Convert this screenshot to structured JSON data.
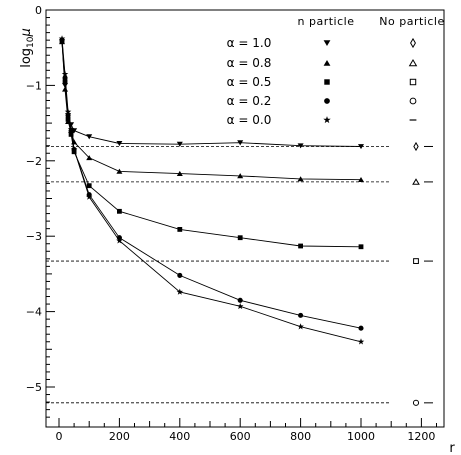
{
  "chart_data": {
    "type": "line",
    "xlabel": "r",
    "ylabel": "log",
    "ylabel_sub": "10",
    "ylabel_var": "μ",
    "xlim": [
      0,
      1300
    ],
    "ylim": [
      -5.4,
      0
    ],
    "xticks": [
      0,
      200,
      400,
      600,
      800,
      1000,
      1200
    ],
    "yticks": [
      0,
      -1,
      -2,
      -3,
      -4,
      -5
    ],
    "tick_labels_x": [
      "0",
      "200",
      "400",
      "600",
      "800",
      "1000",
      "1200"
    ],
    "tick_labels_y": [
      "0",
      "−1",
      "−2",
      "−3",
      "−4",
      "−5"
    ],
    "legend": {
      "col_header_with": "n particle",
      "col_header_without": "No particle",
      "placement": "top-right"
    },
    "series": [
      {
        "name": "α = 1.0",
        "marker": "triangle-down",
        "no_particle_marker": "diamond",
        "x": [
          10,
          20,
          30,
          40,
          50,
          100,
          200,
          400,
          600,
          800,
          1000
        ],
        "y": [
          -0.42,
          -1.0,
          -1.4,
          -1.52,
          -1.6,
          -1.68,
          -1.77,
          -1.78,
          -1.76,
          -1.8,
          -1.81
        ],
        "no_particle_value": -1.81
      },
      {
        "name": "α = 0.8",
        "marker": "triangle-up",
        "no_particle_marker": "triangle-up-open",
        "x": [
          10,
          20,
          30,
          40,
          50,
          100,
          200,
          400,
          600,
          800,
          1000
        ],
        "y": [
          -0.42,
          -1.05,
          -1.48,
          -1.6,
          -1.75,
          -1.96,
          -2.14,
          -2.17,
          -2.2,
          -2.24,
          -2.25
        ],
        "no_particle_value": -2.28
      },
      {
        "name": "α = 0.5",
        "marker": "square",
        "no_particle_marker": "square-open",
        "x": [
          10,
          20,
          30,
          40,
          50,
          100,
          200,
          400,
          600,
          800,
          1000
        ],
        "y": [
          -0.42,
          -0.95,
          -1.45,
          -1.65,
          -1.88,
          -2.33,
          -2.67,
          -2.91,
          -3.02,
          -3.13,
          -3.14
        ],
        "no_particle_value": -3.33
      },
      {
        "name": "α = 0.2",
        "marker": "circle",
        "no_particle_marker": "circle-open",
        "x": [
          10,
          20,
          30,
          40,
          50,
          100,
          200,
          400,
          600,
          800,
          1000
        ],
        "y": [
          -0.4,
          -0.9,
          -1.4,
          -1.6,
          -1.85,
          -2.45,
          -3.02,
          -3.52,
          -3.85,
          -4.05,
          -4.22
        ],
        "no_particle_value": -5.21
      },
      {
        "name": "α = 0.0",
        "marker": "star",
        "no_particle_marker": "dash",
        "x": [
          10,
          20,
          30,
          40,
          50,
          100,
          200,
          400,
          600,
          800,
          1000
        ],
        "y": [
          -0.38,
          -0.85,
          -1.35,
          -1.58,
          -1.85,
          -2.48,
          -3.06,
          -3.74,
          -3.93,
          -4.2,
          -4.4
        ],
        "no_particle_value": null
      }
    ],
    "reference_lines": [
      -1.81,
      -2.28,
      -3.33,
      -5.21
    ],
    "grid": false
  }
}
